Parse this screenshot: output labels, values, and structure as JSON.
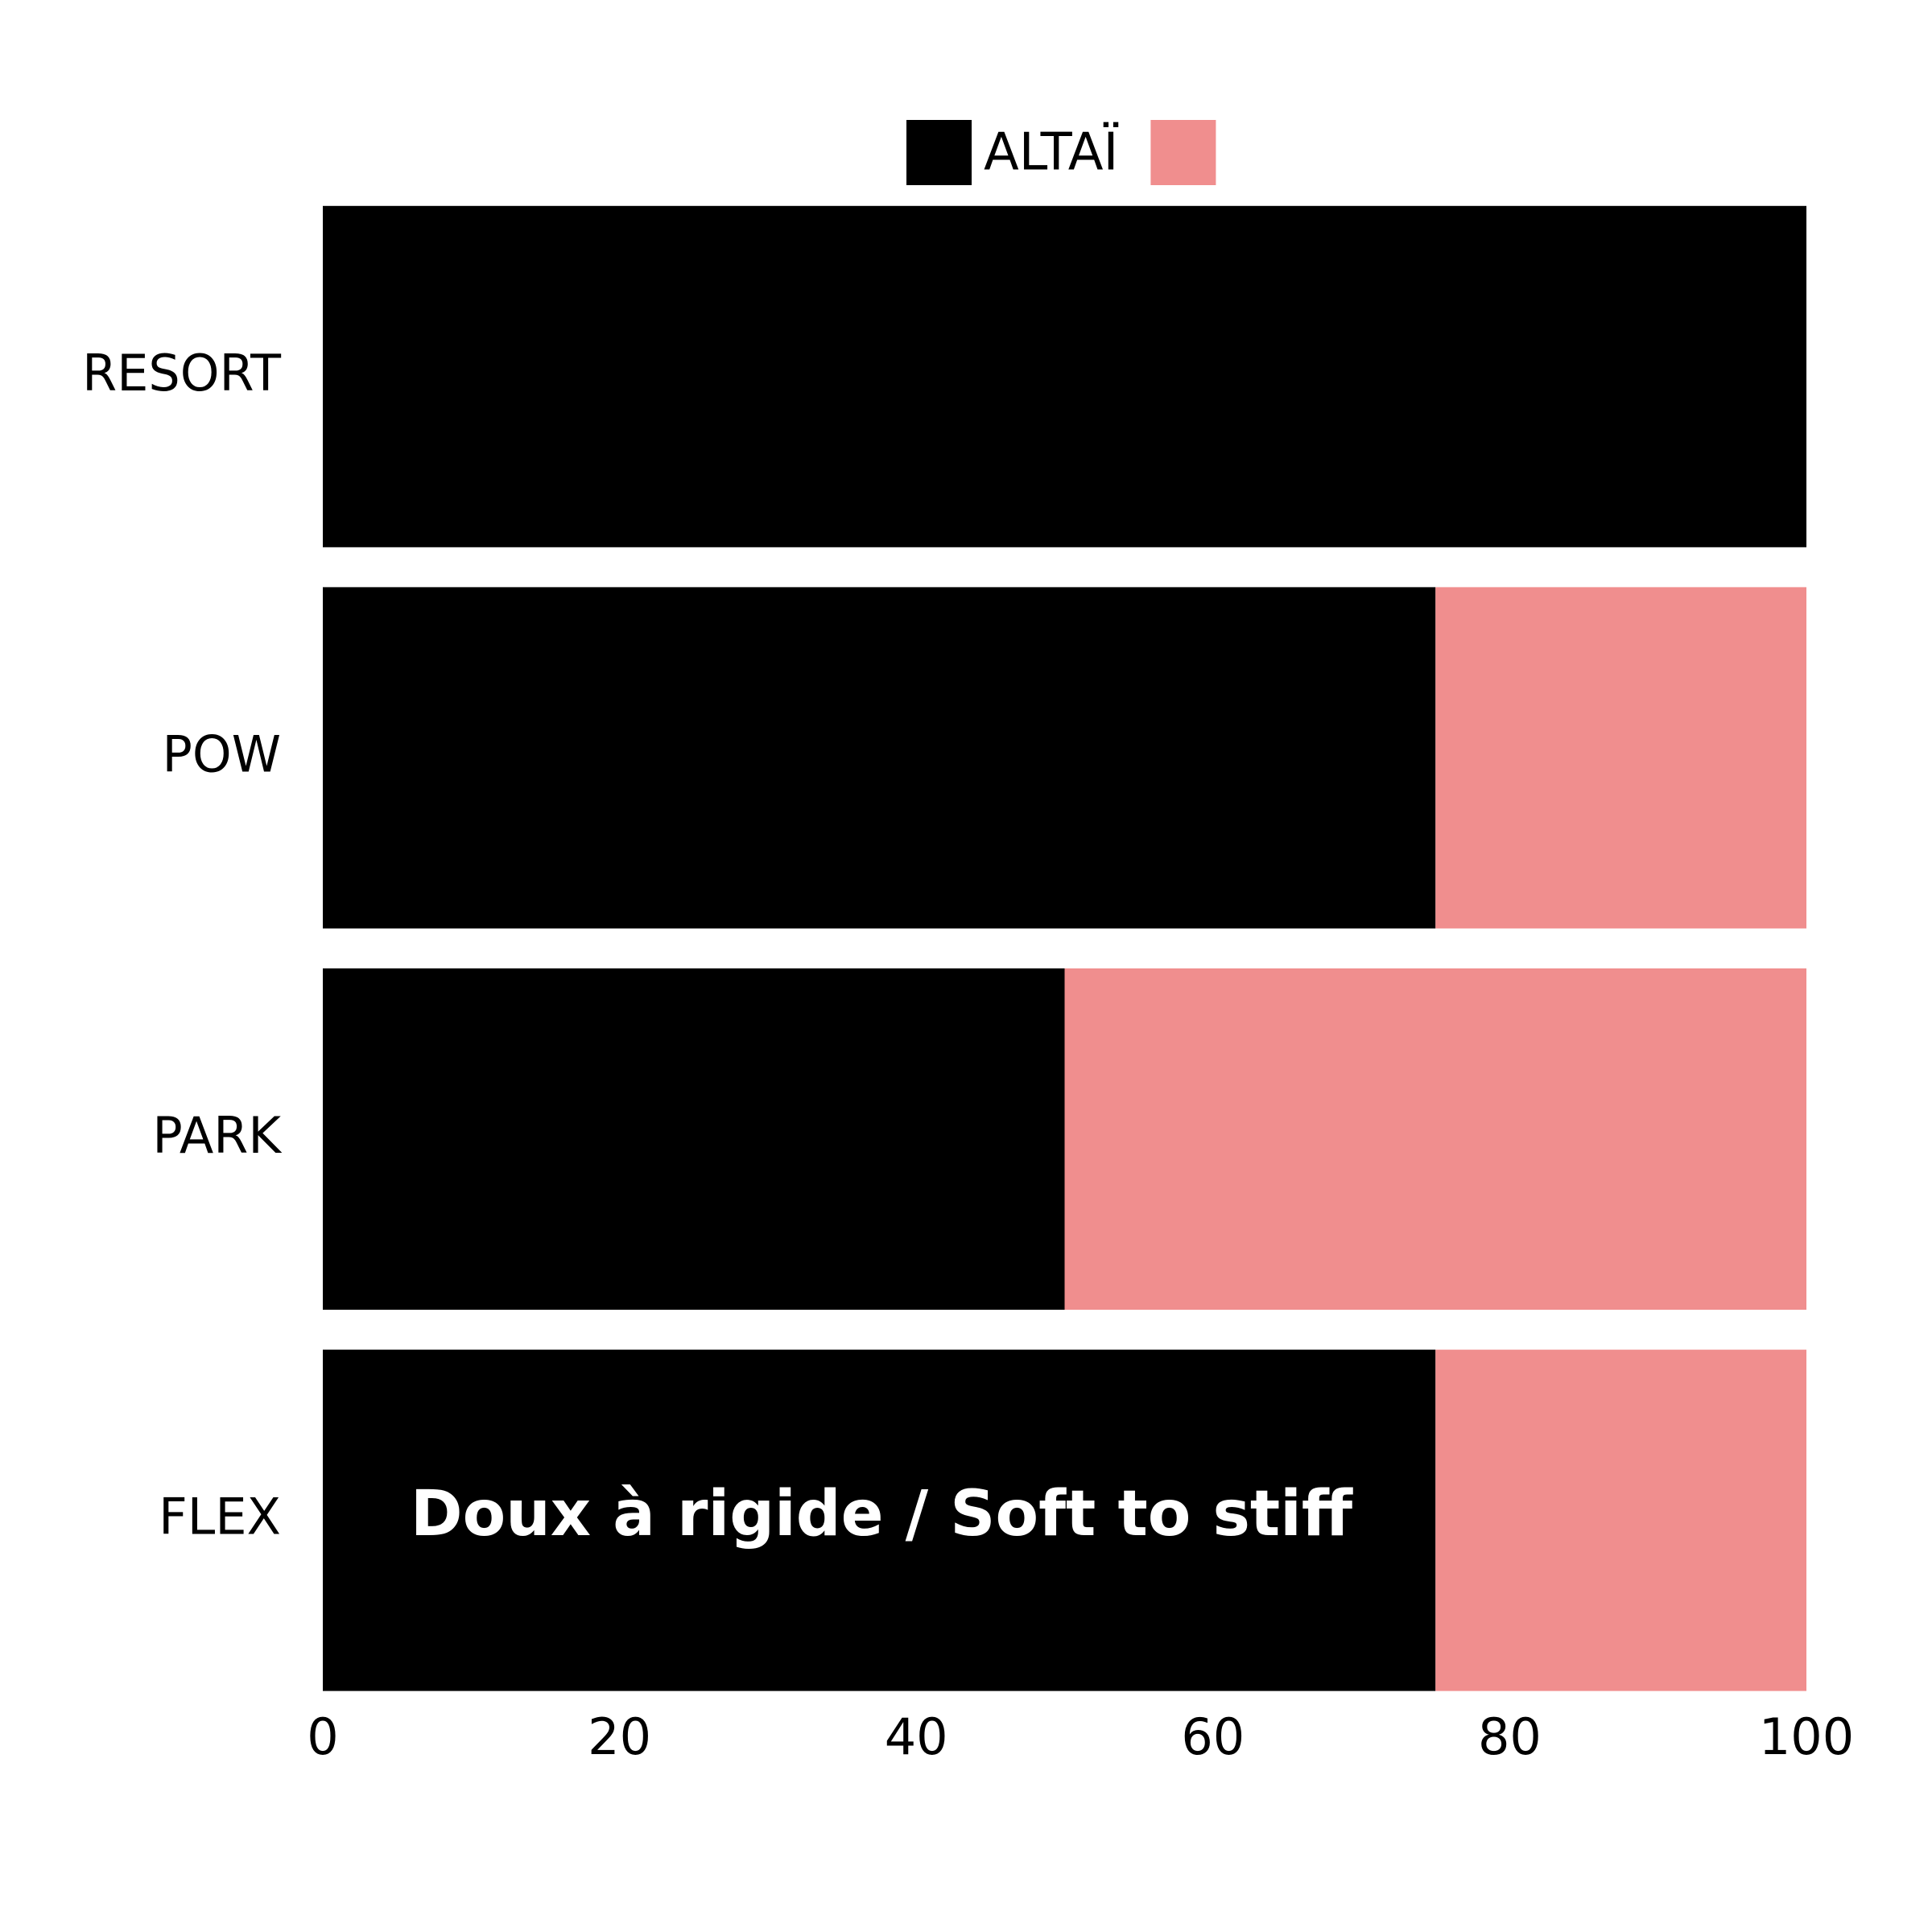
{
  "chart_data": {
    "type": "stacked-barh",
    "categories": [
      "RESORT",
      "POW",
      "PARK",
      "FLEX"
    ],
    "series": [
      {
        "name": "ALTAÏ",
        "color": "#000000",
        "values": [
          100,
          75,
          50,
          75
        ]
      },
      {
        "color": "#f08e8e",
        "values": [
          0,
          25,
          50,
          25
        ]
      }
    ],
    "xlim": [
      0,
      100
    ],
    "xticks": [
      0,
      20,
      40,
      60,
      80,
      100
    ],
    "annotation": "Doux à rigide / Soft to stiff",
    "grid": false
  }
}
